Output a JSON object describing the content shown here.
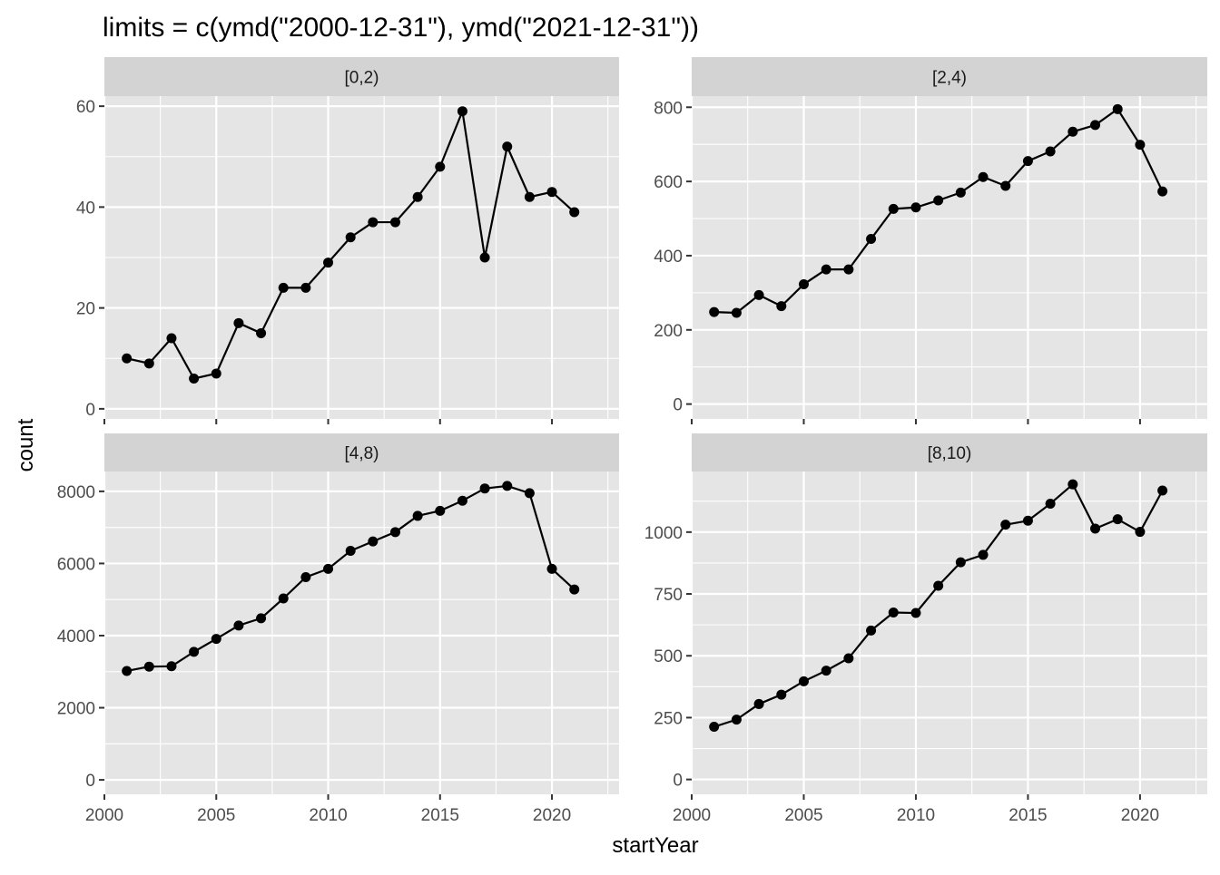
{
  "chart_data": {
    "type": "line",
    "title": "limits = c(ymd(\"2000-12-31\"), ymd(\"2021-12-31\"))",
    "xlabel": "startYear",
    "ylabel": "count",
    "xlim": [
      2000,
      2023
    ],
    "x_ticks": [
      2000,
      2005,
      2010,
      2015,
      2020
    ],
    "markers": "points",
    "colors": {
      "panel_background": "#e5e5e5",
      "strip_background": "#d3d3d3",
      "grid": "#ffffff",
      "line": "#000000",
      "point": "#000000"
    },
    "facets": [
      {
        "strip": "[0,2)",
        "ylim": [
          -2,
          62
        ],
        "y_ticks": [
          0,
          20,
          40,
          60
        ],
        "x": [
          2001,
          2002,
          2003,
          2004,
          2005,
          2006,
          2007,
          2008,
          2009,
          2010,
          2011,
          2012,
          2013,
          2014,
          2015,
          2016,
          2017,
          2018,
          2019,
          2020,
          2021
        ],
        "y": [
          10,
          9,
          14,
          6,
          7,
          17,
          15,
          24,
          24,
          29,
          34,
          37,
          37,
          42,
          48,
          59,
          30,
          52,
          42,
          43,
          39
        ]
      },
      {
        "strip": "[2,4)",
        "ylim": [
          -40,
          830
        ],
        "y_ticks": [
          0,
          200,
          400,
          600,
          800
        ],
        "x": [
          2001,
          2002,
          2003,
          2004,
          2005,
          2006,
          2007,
          2008,
          2009,
          2010,
          2011,
          2012,
          2013,
          2014,
          2015,
          2016,
          2017,
          2018,
          2019,
          2020,
          2021
        ],
        "y": [
          248,
          246,
          294,
          264,
          323,
          363,
          363,
          445,
          526,
          530,
          549,
          570,
          612,
          588,
          655,
          681,
          734,
          752,
          795,
          699,
          573
        ]
      },
      {
        "strip": "[4,8)",
        "ylim": [
          -400,
          8550
        ],
        "y_ticks": [
          0,
          2000,
          4000,
          6000,
          8000
        ],
        "x": [
          2001,
          2002,
          2003,
          2004,
          2005,
          2006,
          2007,
          2008,
          2009,
          2010,
          2011,
          2012,
          2013,
          2014,
          2015,
          2016,
          2017,
          2018,
          2019,
          2020,
          2021
        ],
        "y": [
          3020,
          3140,
          3150,
          3550,
          3910,
          4280,
          4480,
          5030,
          5620,
          5850,
          6350,
          6610,
          6870,
          7320,
          7460,
          7740,
          8080,
          8150,
          7950,
          5850,
          5280
        ]
      },
      {
        "strip": "[8,10)",
        "ylim": [
          -60,
          1245
        ],
        "y_ticks": [
          0,
          250,
          500,
          750,
          1000
        ],
        "x": [
          2001,
          2002,
          2003,
          2004,
          2005,
          2006,
          2007,
          2008,
          2009,
          2010,
          2011,
          2012,
          2013,
          2014,
          2015,
          2016,
          2017,
          2018,
          2019,
          2020,
          2021
        ],
        "y": [
          213,
          242,
          305,
          343,
          397,
          440,
          490,
          602,
          675,
          673,
          783,
          878,
          908,
          1030,
          1046,
          1115,
          1193,
          1014,
          1052,
          1001,
          1168
        ]
      }
    ]
  }
}
